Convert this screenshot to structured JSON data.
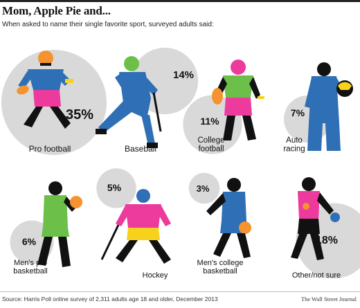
{
  "header": {
    "title": "Mom, Apple Pie and...",
    "subtitle": "When asked to name their single favorite sport, surveyed adults said:"
  },
  "footer": {
    "source": "Source: Harris Poll online survey of 2,311 adults age 18 and older, December 2013",
    "credit": "The Wall Street Journal"
  },
  "chart_data": {
    "type": "bubble",
    "title": "Mom, Apple Pie and...",
    "subtitle": "When asked to name their single favorite sport, surveyed adults said:",
    "unit": "%",
    "categories": [
      "Pro football",
      "Baseball",
      "College football",
      "Auto racing",
      "Men's pro basketball",
      "Hockey",
      "Men's college basketball",
      "Other/not sure"
    ],
    "values": [
      35,
      14,
      11,
      7,
      6,
      5,
      3,
      18
    ],
    "value_labels": [
      "35%",
      "14%",
      "11%",
      "7%",
      "6%",
      "5%",
      "3%",
      "18%"
    ],
    "label_lines": [
      [
        "Pro football"
      ],
      [
        "Baseball"
      ],
      [
        "College",
        "football"
      ],
      [
        "Auto",
        "racing"
      ],
      [
        "Men's pro",
        "basketball"
      ],
      [
        "Hockey"
      ],
      [
        "Men's college",
        "basketball"
      ],
      [
        "Other/not sure"
      ]
    ],
    "colors": {
      "circle": "#d9d9d9",
      "silhouette": "#111111",
      "blue": "#2e6fb5",
      "magenta": "#ec3a9d",
      "green": "#6cc04a",
      "orange": "#f4932f",
      "yellow": "#f7d21c"
    },
    "icons": [
      "football-player-icon",
      "baseball-batter-icon",
      "college-football-player-icon",
      "race-driver-icon",
      "basketball-player-icon",
      "hockey-player-icon",
      "college-basketball-player-icon",
      "other-sport-player-icon"
    ]
  }
}
